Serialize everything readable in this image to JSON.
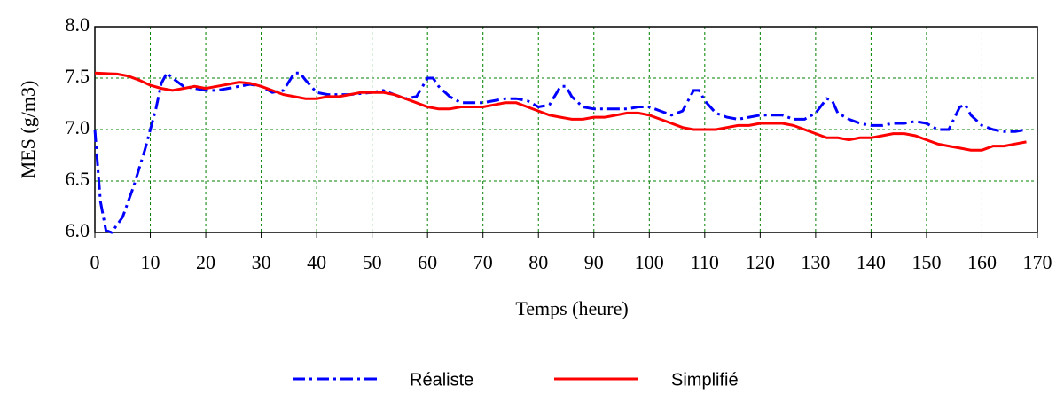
{
  "chart_data": {
    "type": "line",
    "xlabel": "Temps (heure)",
    "ylabel": "MES (g/m3)",
    "xlim": [
      0,
      170
    ],
    "xticks": [
      0,
      10,
      20,
      30,
      40,
      50,
      60,
      70,
      80,
      90,
      100,
      110,
      120,
      130,
      140,
      150,
      160,
      170
    ],
    "ylim": [
      6,
      8
    ],
    "yticks": [
      {
        "value": 6,
        "label": "6.0"
      },
      {
        "value": 6.5,
        "label": "6.5"
      },
      {
        "value": 7,
        "label": "7.0"
      },
      {
        "value": 7.5,
        "label": "7.5"
      },
      {
        "value": 8,
        "label": "8.0"
      }
    ],
    "grid": true,
    "legend": "bottom",
    "series": [
      {
        "name": "Réaliste",
        "color": "#0000ff",
        "dash": "dashdot",
        "x": [
          0,
          1,
          2,
          3,
          5,
          7,
          9,
          11,
          12,
          13,
          14,
          16,
          18,
          20,
          22,
          24,
          26,
          28,
          30,
          32,
          34,
          36,
          37,
          38,
          40,
          42,
          44,
          46,
          48,
          50,
          52,
          54,
          56,
          58,
          60,
          61,
          62,
          64,
          66,
          68,
          70,
          72,
          74,
          76,
          78,
          80,
          82,
          84,
          85,
          86,
          88,
          90,
          92,
          94,
          96,
          98,
          100,
          102,
          104,
          106,
          108,
          109,
          110,
          112,
          114,
          116,
          118,
          120,
          122,
          124,
          126,
          128,
          130,
          132,
          133,
          134,
          136,
          138,
          140,
          142,
          144,
          146,
          148,
          150,
          152,
          154,
          156,
          157,
          158,
          160,
          162,
          164,
          166,
          168
        ],
        "values": [
          7.0,
          6.3,
          6.02,
          6.0,
          6.15,
          6.45,
          6.8,
          7.2,
          7.45,
          7.55,
          7.5,
          7.42,
          7.4,
          7.38,
          7.38,
          7.4,
          7.42,
          7.44,
          7.42,
          7.36,
          7.38,
          7.55,
          7.55,
          7.48,
          7.36,
          7.34,
          7.34,
          7.34,
          7.35,
          7.36,
          7.38,
          7.34,
          7.3,
          7.32,
          7.5,
          7.5,
          7.42,
          7.32,
          7.26,
          7.26,
          7.26,
          7.28,
          7.3,
          7.3,
          7.28,
          7.22,
          7.24,
          7.42,
          7.42,
          7.32,
          7.22,
          7.2,
          7.2,
          7.2,
          7.2,
          7.22,
          7.22,
          7.18,
          7.14,
          7.18,
          7.38,
          7.38,
          7.28,
          7.16,
          7.12,
          7.1,
          7.12,
          7.14,
          7.14,
          7.14,
          7.1,
          7.1,
          7.16,
          7.3,
          7.28,
          7.16,
          7.1,
          7.06,
          7.04,
          7.04,
          7.06,
          7.06,
          7.08,
          7.06,
          7.0,
          7.0,
          7.22,
          7.24,
          7.14,
          7.04,
          7.0,
          6.98,
          6.98,
          7.0
        ]
      },
      {
        "name": "Simplifié",
        "color": "#ff0000",
        "dash": "solid",
        "x": [
          0,
          4,
          6,
          8,
          10,
          12,
          14,
          16,
          18,
          20,
          22,
          24,
          26,
          28,
          30,
          32,
          34,
          36,
          38,
          40,
          42,
          44,
          46,
          48,
          50,
          52,
          54,
          56,
          58,
          60,
          62,
          64,
          66,
          68,
          70,
          72,
          74,
          76,
          78,
          80,
          82,
          84,
          86,
          88,
          90,
          92,
          94,
          96,
          98,
          100,
          102,
          104,
          106,
          108,
          110,
          112,
          114,
          116,
          118,
          120,
          122,
          124,
          126,
          128,
          130,
          132,
          134,
          136,
          138,
          140,
          142,
          144,
          146,
          148,
          150,
          152,
          154,
          156,
          158,
          160,
          162,
          164,
          166,
          168
        ],
        "values": [
          7.55,
          7.54,
          7.52,
          7.48,
          7.43,
          7.4,
          7.38,
          7.4,
          7.42,
          7.4,
          7.42,
          7.44,
          7.46,
          7.45,
          7.42,
          7.38,
          7.34,
          7.32,
          7.3,
          7.3,
          7.32,
          7.32,
          7.34,
          7.36,
          7.36,
          7.36,
          7.34,
          7.3,
          7.26,
          7.22,
          7.2,
          7.2,
          7.22,
          7.22,
          7.22,
          7.24,
          7.26,
          7.26,
          7.22,
          7.18,
          7.14,
          7.12,
          7.1,
          7.1,
          7.12,
          7.12,
          7.14,
          7.16,
          7.16,
          7.14,
          7.1,
          7.06,
          7.02,
          7.0,
          7.0,
          7.0,
          7.02,
          7.04,
          7.04,
          7.06,
          7.06,
          7.06,
          7.04,
          7.0,
          6.96,
          6.92,
          6.92,
          6.9,
          6.92,
          6.92,
          6.94,
          6.96,
          6.96,
          6.94,
          6.9,
          6.86,
          6.84,
          6.82,
          6.8,
          6.8,
          6.84,
          6.84,
          6.86,
          6.88
        ]
      }
    ]
  }
}
